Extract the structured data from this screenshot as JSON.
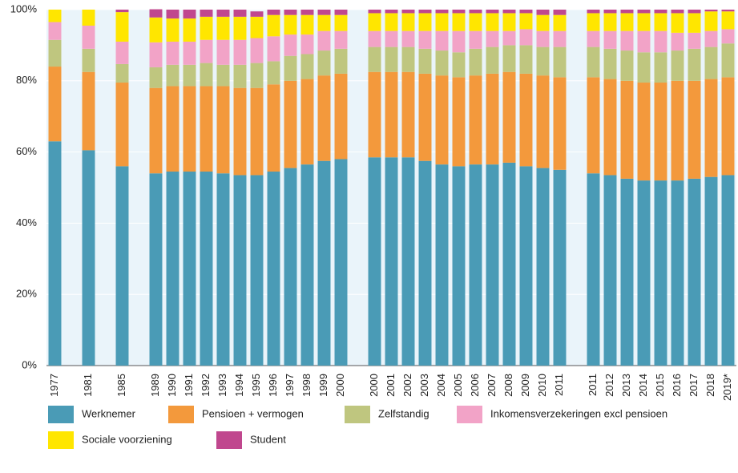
{
  "chart_data": {
    "type": "stacked_bar",
    "categories": [
      "1977",
      null,
      "1981",
      null,
      "1985",
      null,
      "1989",
      "1990",
      "1991",
      "1992",
      "1993",
      "1994",
      "1995",
      "1996",
      "1997",
      "1998",
      "1999",
      "2000",
      null,
      "2000",
      "2001",
      "2002",
      "2003",
      "2004",
      "2005",
      "2006",
      "2007",
      "2008",
      "2009",
      "2010",
      "2011",
      null,
      "2011",
      "2012",
      "2013",
      "2014",
      "2015",
      "2016",
      "2017",
      "2018",
      "2019*"
    ],
    "series": [
      {
        "name": "Werknemer",
        "color": "#4a9bb6",
        "values": [
          63,
          null,
          60.5,
          null,
          56,
          null,
          54,
          54.5,
          54.5,
          54.5,
          54,
          53.5,
          53.5,
          54.5,
          55.5,
          56.5,
          57.5,
          58,
          null,
          58.5,
          58.5,
          58.5,
          57.5,
          56.5,
          56,
          56.5,
          56.5,
          57,
          56,
          55.5,
          55,
          null,
          54,
          53.5,
          52.5,
          52,
          52,
          52,
          52.5,
          53,
          53.5
        ]
      },
      {
        "name": "Pensioen + vermogen",
        "color": "#f3993c",
        "values": [
          21,
          null,
          22,
          null,
          23.5,
          null,
          24,
          24,
          24,
          24,
          24.5,
          24.5,
          24.5,
          24.5,
          24.5,
          24,
          24,
          24,
          null,
          24,
          24,
          24,
          24.5,
          25,
          25,
          25,
          25.5,
          25.5,
          26,
          26,
          26,
          null,
          27,
          27,
          27.5,
          27.5,
          27.5,
          28,
          27.5,
          27.5,
          27.5
        ]
      },
      {
        "name": "Zelfstandig",
        "color": "#bfc67f",
        "values": [
          7.5,
          null,
          6.5,
          null,
          5.2,
          null,
          5.8,
          6,
          6,
          6.5,
          6,
          6.5,
          7,
          6.5,
          7,
          7,
          7,
          7,
          null,
          7,
          7,
          7,
          7,
          7,
          7,
          7.5,
          7.5,
          7.5,
          8,
          8,
          8.5,
          null,
          8.5,
          8.5,
          8.5,
          8.5,
          8.5,
          8.5,
          9,
          9,
          9.5
        ]
      },
      {
        "name": "Inkomensverzekeringen excl pensioen",
        "color": "#f2a3c7",
        "values": [
          5,
          null,
          6.5,
          null,
          6.3,
          null,
          7,
          6.5,
          6.5,
          6.5,
          7,
          7,
          7,
          7,
          6,
          5.5,
          5.5,
          5,
          null,
          4.5,
          4.5,
          4.5,
          5,
          5.5,
          6,
          5,
          4.5,
          4,
          4.5,
          4.5,
          4.5,
          null,
          4.5,
          5,
          5.5,
          6,
          6,
          5,
          4.5,
          4.5,
          4
        ]
      },
      {
        "name": "Sociale voorziening",
        "color": "#ffe600",
        "values": [
          3.5,
          null,
          4.5,
          null,
          8.3,
          null,
          7,
          6.5,
          6.5,
          6.5,
          6.5,
          6.5,
          6,
          6,
          5.5,
          5.5,
          4.5,
          4.5,
          null,
          5,
          5,
          5,
          5,
          5,
          5,
          5,
          5,
          5,
          4.5,
          4.5,
          4.5,
          null,
          5,
          5,
          5,
          5,
          5,
          5.5,
          5.5,
          5.5,
          5
        ]
      },
      {
        "name": "Student",
        "color": "#c0478e",
        "values": [
          0,
          null,
          0,
          null,
          0.7,
          null,
          2.3,
          2.5,
          2.5,
          2,
          2,
          2,
          1.5,
          1.5,
          1.5,
          1.5,
          1.5,
          1.5,
          null,
          1,
          1,
          1,
          1,
          1,
          1,
          1,
          1,
          1,
          1,
          1.5,
          1.5,
          null,
          1,
          1,
          1,
          1,
          1,
          1,
          1,
          0.5,
          0.5
        ]
      }
    ],
    "ylim": [
      0,
      100
    ],
    "yticks": [
      {
        "value": 0,
        "label": "0%"
      },
      {
        "value": 20,
        "label": "20%"
      },
      {
        "value": 40,
        "label": "40%"
      },
      {
        "value": 60,
        "label": "60%"
      },
      {
        "value": 80,
        "label": "80%"
      },
      {
        "value": 100,
        "label": "100%"
      }
    ],
    "grid": true,
    "legend": "bottom"
  }
}
